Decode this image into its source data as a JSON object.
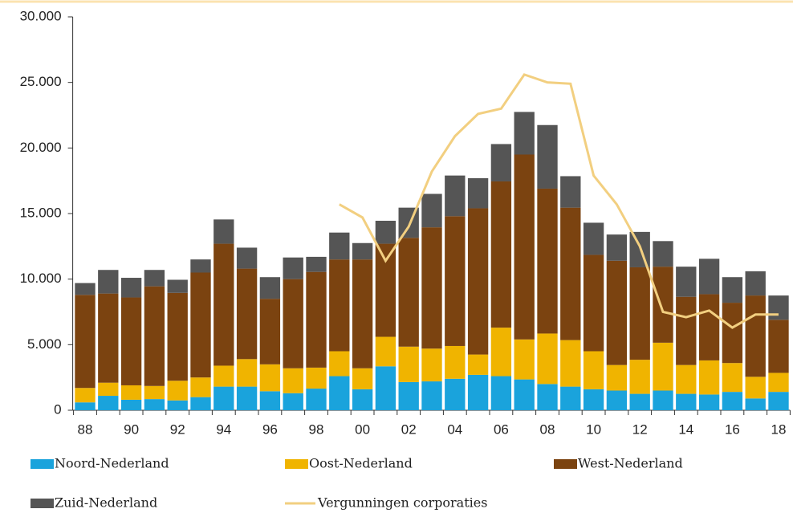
{
  "chart_data": {
    "type": "bar",
    "stacked": true,
    "categories": [
      "88",
      null,
      "90",
      null,
      "92",
      null,
      "94",
      null,
      "96",
      null,
      "98",
      null,
      "00",
      null,
      "02",
      null,
      "04",
      null,
      "06",
      null,
      "08",
      null,
      "10",
      null,
      "12",
      null,
      "14",
      null,
      "16",
      null,
      "18"
    ],
    "series": [
      {
        "name": "Noord-Nederland",
        "color": "#1aa3dc",
        "values": [
          600,
          1100,
          800,
          850,
          750,
          1000,
          1800,
          1800,
          1450,
          1300,
          1650,
          2600,
          1600,
          3350,
          2150,
          2200,
          2400,
          2700,
          2600,
          2350,
          2000,
          1800,
          1600,
          1500,
          1250,
          1500,
          1250,
          1200,
          1400,
          900,
          1400
        ]
      },
      {
        "name": "Oost-Nederland",
        "color": "#f0b400",
        "values": [
          1100,
          1000,
          1100,
          1000,
          1500,
          1500,
          1600,
          2100,
          2050,
          1900,
          1600,
          1900,
          1600,
          2250,
          2700,
          2500,
          2500,
          1550,
          3700,
          3050,
          3850,
          3550,
          2900,
          1950,
          2600,
          3650,
          2200,
          2600,
          2200,
          1650,
          1450
        ]
      },
      {
        "name": "West-Nederland",
        "color": "#7b4310",
        "values": [
          7100,
          6800,
          6700,
          7600,
          6700,
          8000,
          9300,
          6900,
          5000,
          6800,
          7300,
          7000,
          8300,
          7100,
          8300,
          9250,
          9900,
          11150,
          11150,
          14100,
          11050,
          10100,
          7350,
          7950,
          7050,
          5800,
          5200,
          5050,
          4600,
          6200,
          4050
        ]
      },
      {
        "name": "Zuid-Nederland",
        "color": "#555555",
        "values": [
          900,
          1800,
          1500,
          1250,
          1000,
          1000,
          1850,
          1600,
          1650,
          1650,
          1150,
          2050,
          1250,
          1750,
          2300,
          2550,
          3100,
          2300,
          2850,
          3250,
          4850,
          2400,
          2450,
          2000,
          2700,
          1950,
          2300,
          2700,
          1950,
          1850,
          1850
        ]
      },
      {
        "name": "Vergunningen corporaties",
        "type": "line",
        "color": "#f2cf80",
        "values": [
          null,
          null,
          null,
          null,
          null,
          null,
          null,
          null,
          null,
          null,
          null,
          15700,
          14700,
          11400,
          14000,
          18200,
          20900,
          22600,
          23000,
          25600,
          25000,
          24900,
          17900,
          15700,
          12500,
          7500,
          7100,
          7600,
          6300,
          7300,
          7300
        ]
      }
    ],
    "ylim": [
      0,
      30000
    ],
    "yticks": [
      0,
      {
        "value": 5000,
        "label": "5.000"
      },
      {
        "value": 10000,
        "label": "10.000"
      },
      {
        "value": 15000,
        "label": "15.000"
      },
      {
        "value": 20000,
        "label": "20.000"
      },
      {
        "value": 25000,
        "label": "25.000"
      },
      {
        "value": 30000,
        "label": "30.000"
      }
    ]
  }
}
